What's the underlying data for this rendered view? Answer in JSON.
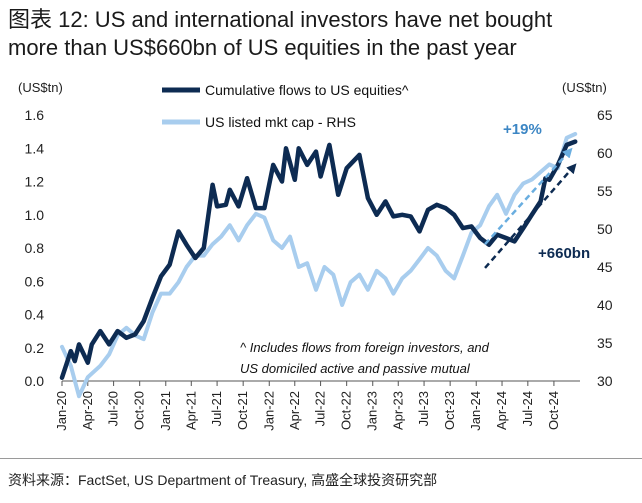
{
  "title": {
    "line1": "图表 12: US and international investors have net bought",
    "line2": "more than US$660bn of US equities in the past year"
  },
  "source": "资料来源：FactSet, US Department of Treasury, 高盛全球投资研究部",
  "chart_data": {
    "type": "line",
    "left_axis_unit": "(US$tn)",
    "right_axis_unit": "(US$tn)",
    "y_left": {
      "min": 0.0,
      "max": 1.6,
      "ticks": [
        "0.0",
        "0.2",
        "0.4",
        "0.6",
        "0.8",
        "1.0",
        "1.2",
        "1.4",
        "1.6"
      ]
    },
    "y_right": {
      "min": 30,
      "max": 65,
      "ticks": [
        "30",
        "35",
        "40",
        "45",
        "50",
        "55",
        "60",
        "65"
      ]
    },
    "x_ticks": [
      "Jan-20",
      "Apr-20",
      "Jul-20",
      "Oct-20",
      "Jan-21",
      "Apr-21",
      "Jul-21",
      "Oct-21",
      "Jan-22",
      "Apr-22",
      "Jul-22",
      "Oct-22",
      "Jan-23",
      "Apr-23",
      "Jul-23",
      "Oct-23",
      "Jan-24",
      "Apr-24",
      "Jul-24",
      "Oct-24"
    ],
    "x_range": [
      "Jan-20",
      "Jan-25"
    ],
    "legend": {
      "position": "top-left"
    },
    "series": [
      {
        "name": "Cumulative flows to US equities^",
        "axis": "left",
        "color": "#0d2b52",
        "values": [
          {
            "date": "2020-01-01",
            "v": 0.02
          },
          {
            "date": "2020-02-01",
            "v": 0.18
          },
          {
            "date": "2020-02-15",
            "v": 0.12
          },
          {
            "date": "2020-03-01",
            "v": 0.22
          },
          {
            "date": "2020-04-01",
            "v": 0.11
          },
          {
            "date": "2020-04-15",
            "v": 0.22
          },
          {
            "date": "2020-05-15",
            "v": 0.3
          },
          {
            "date": "2020-06-15",
            "v": 0.22
          },
          {
            "date": "2020-07-15",
            "v": 0.3
          },
          {
            "date": "2020-08-15",
            "v": 0.26
          },
          {
            "date": "2020-09-15",
            "v": 0.28
          },
          {
            "date": "2020-10-15",
            "v": 0.36
          },
          {
            "date": "2020-11-15",
            "v": 0.5
          },
          {
            "date": "2020-12-15",
            "v": 0.63
          },
          {
            "date": "2021-01-15",
            "v": 0.7
          },
          {
            "date": "2021-02-15",
            "v": 0.9
          },
          {
            "date": "2021-03-15",
            "v": 0.82
          },
          {
            "date": "2021-04-15",
            "v": 0.74
          },
          {
            "date": "2021-05-15",
            "v": 0.8
          },
          {
            "date": "2021-06-15",
            "v": 1.18
          },
          {
            "date": "2021-07-01",
            "v": 1.05
          },
          {
            "date": "2021-08-01",
            "v": 1.06
          },
          {
            "date": "2021-08-15",
            "v": 1.15
          },
          {
            "date": "2021-09-15",
            "v": 1.05
          },
          {
            "date": "2021-10-15",
            "v": 1.22
          },
          {
            "date": "2021-11-15",
            "v": 1.04
          },
          {
            "date": "2021-12-15",
            "v": 1.04
          },
          {
            "date": "2022-01-15",
            "v": 1.3
          },
          {
            "date": "2022-02-15",
            "v": 1.2
          },
          {
            "date": "2022-03-01",
            "v": 1.4
          },
          {
            "date": "2022-04-01",
            "v": 1.21
          },
          {
            "date": "2022-04-15",
            "v": 1.4
          },
          {
            "date": "2022-05-15",
            "v": 1.3
          },
          {
            "date": "2022-06-15",
            "v": 1.38
          },
          {
            "date": "2022-07-01",
            "v": 1.23
          },
          {
            "date": "2022-08-01",
            "v": 1.42
          },
          {
            "date": "2022-09-01",
            "v": 1.12
          },
          {
            "date": "2022-10-01",
            "v": 1.28
          },
          {
            "date": "2022-11-15",
            "v": 1.36
          },
          {
            "date": "2022-12-15",
            "v": 1.1
          },
          {
            "date": "2023-01-15",
            "v": 1.0
          },
          {
            "date": "2023-02-15",
            "v": 1.08
          },
          {
            "date": "2023-03-15",
            "v": 0.99
          },
          {
            "date": "2023-04-15",
            "v": 1.0
          },
          {
            "date": "2023-05-15",
            "v": 0.99
          },
          {
            "date": "2023-06-15",
            "v": 0.9
          },
          {
            "date": "2023-07-15",
            "v": 1.03
          },
          {
            "date": "2023-08-15",
            "v": 1.06
          },
          {
            "date": "2023-09-15",
            "v": 1.04
          },
          {
            "date": "2023-10-15",
            "v": 1.0
          },
          {
            "date": "2023-11-15",
            "v": 0.92
          },
          {
            "date": "2023-12-15",
            "v": 0.93
          },
          {
            "date": "2024-01-15",
            "v": 0.86
          },
          {
            "date": "2024-02-15",
            "v": 0.82
          },
          {
            "date": "2024-03-15",
            "v": 0.88
          },
          {
            "date": "2024-04-15",
            "v": 0.86
          },
          {
            "date": "2024-05-15",
            "v": 0.84
          },
          {
            "date": "2024-06-15",
            "v": 0.92
          },
          {
            "date": "2024-07-15",
            "v": 1.0
          },
          {
            "date": "2024-08-15",
            "v": 1.08
          },
          {
            "date": "2024-09-01",
            "v": 1.22
          },
          {
            "date": "2024-09-15",
            "v": 1.21
          },
          {
            "date": "2024-10-15",
            "v": 1.3
          },
          {
            "date": "2024-11-15",
            "v": 1.42
          },
          {
            "date": "2024-12-15",
            "v": 1.44
          }
        ]
      },
      {
        "name": "US listed mkt cap - RHS",
        "axis": "right",
        "color": "#a8cdee",
        "values": [
          {
            "date": "2020-01-01",
            "v": 34.5
          },
          {
            "date": "2020-02-01",
            "v": 32.0
          },
          {
            "date": "2020-03-01",
            "v": 28.0
          },
          {
            "date": "2020-04-01",
            "v": 30.5
          },
          {
            "date": "2020-05-15",
            "v": 32.0
          },
          {
            "date": "2020-06-15",
            "v": 33.5
          },
          {
            "date": "2020-07-15",
            "v": 36.0
          },
          {
            "date": "2020-08-15",
            "v": 37.0
          },
          {
            "date": "2020-09-15",
            "v": 36.0
          },
          {
            "date": "2020-10-15",
            "v": 35.5
          },
          {
            "date": "2020-11-15",
            "v": 39.0
          },
          {
            "date": "2020-12-15",
            "v": 41.5
          },
          {
            "date": "2021-01-15",
            "v": 41.5
          },
          {
            "date": "2021-02-15",
            "v": 43.0
          },
          {
            "date": "2021-03-15",
            "v": 45.0
          },
          {
            "date": "2021-04-15",
            "v": 46.5
          },
          {
            "date": "2021-05-15",
            "v": 46.5
          },
          {
            "date": "2021-06-15",
            "v": 48.0
          },
          {
            "date": "2021-07-15",
            "v": 49.0
          },
          {
            "date": "2021-08-15",
            "v": 50.5
          },
          {
            "date": "2021-09-15",
            "v": 48.5
          },
          {
            "date": "2021-10-15",
            "v": 50.5
          },
          {
            "date": "2021-11-15",
            "v": 52.0
          },
          {
            "date": "2021-12-15",
            "v": 51.5
          },
          {
            "date": "2022-01-15",
            "v": 48.5
          },
          {
            "date": "2022-02-15",
            "v": 47.5
          },
          {
            "date": "2022-03-15",
            "v": 49.0
          },
          {
            "date": "2022-04-15",
            "v": 45.0
          },
          {
            "date": "2022-05-15",
            "v": 45.5
          },
          {
            "date": "2022-06-15",
            "v": 42.0
          },
          {
            "date": "2022-07-15",
            "v": 45.0
          },
          {
            "date": "2022-08-15",
            "v": 44.0
          },
          {
            "date": "2022-09-15",
            "v": 40.0
          },
          {
            "date": "2022-10-15",
            "v": 43.0
          },
          {
            "date": "2022-11-15",
            "v": 44.0
          },
          {
            "date": "2022-12-15",
            "v": 42.0
          },
          {
            "date": "2023-01-15",
            "v": 44.5
          },
          {
            "date": "2023-02-15",
            "v": 43.5
          },
          {
            "date": "2023-03-15",
            "v": 41.5
          },
          {
            "date": "2023-04-15",
            "v": 43.5
          },
          {
            "date": "2023-05-15",
            "v": 44.5
          },
          {
            "date": "2023-06-15",
            "v": 46.0
          },
          {
            "date": "2023-07-15",
            "v": 47.5
          },
          {
            "date": "2023-08-15",
            "v": 46.5
          },
          {
            "date": "2023-09-15",
            "v": 44.5
          },
          {
            "date": "2023-10-15",
            "v": 43.5
          },
          {
            "date": "2023-11-15",
            "v": 46.5
          },
          {
            "date": "2023-12-15",
            "v": 49.5
          },
          {
            "date": "2024-01-15",
            "v": 50.5
          },
          {
            "date": "2024-02-15",
            "v": 53.0
          },
          {
            "date": "2024-03-15",
            "v": 54.5
          },
          {
            "date": "2024-04-15",
            "v": 52.0
          },
          {
            "date": "2024-05-15",
            "v": 54.5
          },
          {
            "date": "2024-06-15",
            "v": 56.0
          },
          {
            "date": "2024-07-15",
            "v": 56.5
          },
          {
            "date": "2024-08-15",
            "v": 57.5
          },
          {
            "date": "2024-09-15",
            "v": 58.5
          },
          {
            "date": "2024-10-15",
            "v": 58.0
          },
          {
            "date": "2024-11-15",
            "v": 62.0
          },
          {
            "date": "2024-12-15",
            "v": 62.5
          }
        ]
      }
    ],
    "annotations": [
      {
        "text": "+19%",
        "color": "#3c86c4"
      },
      {
        "text": "+660bn",
        "color": "#0d2b52"
      }
    ],
    "footnote_lines": [
      "^ Includes flows from foreign investors, and",
      "US domiciled active and passive mutual"
    ],
    "arrow_light": {
      "from": {
        "date": "2024-02-01",
        "v": 48
      },
      "to": {
        "date": "2024-12-01",
        "v": 60.5
      },
      "axis": "right"
    },
    "arrow_dark": {
      "from": {
        "date": "2024-02-01",
        "v": 0.68
      },
      "to": {
        "date": "2024-12-15",
        "v": 1.3
      },
      "axis": "left"
    }
  }
}
